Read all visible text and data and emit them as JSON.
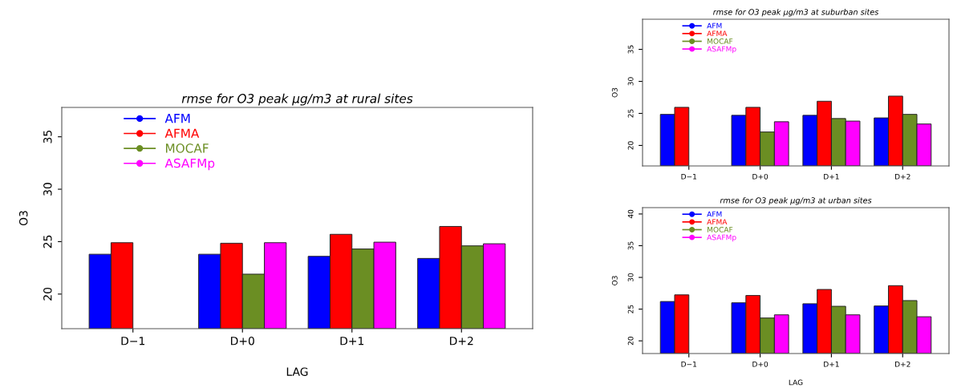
{
  "chart_data": [
    {
      "type": "bar",
      "title": "rmse for O3 peak µg/m3 at rural sites",
      "xlabel": "LAG",
      "ylabel": "O3",
      "categories": [
        "D−1",
        "D+0",
        "D+1",
        "D+2"
      ],
      "ylim": [
        16.7,
        37.8
      ],
      "yticks": [
        20,
        25,
        30,
        35
      ],
      "legend": "top left",
      "grid": false,
      "series": [
        {
          "name": "AFM",
          "color": "#0000ff",
          "values": [
            23.8,
            23.8,
            23.6,
            23.4
          ]
        },
        {
          "name": "AFMA",
          "color": "#ff0000",
          "values": [
            24.9,
            24.85,
            25.7,
            26.45
          ]
        },
        {
          "name": "MOCAF",
          "color": "#6b8e23",
          "values": [
            null,
            21.9,
            24.3,
            24.6
          ]
        },
        {
          "name": "ASAFMp",
          "color": "#ff00ff",
          "values": [
            null,
            24.9,
            24.95,
            24.8
          ]
        }
      ]
    },
    {
      "type": "bar",
      "title": "rmse for O3 peak µg/m3 at suburban sites",
      "ylabel": "O3",
      "categories": [
        "D−1",
        "D+0",
        "D+1",
        "D+2"
      ],
      "ylim": [
        16.8,
        39.7
      ],
      "yticks": [
        20,
        25,
        30,
        35
      ],
      "legend": "top left",
      "grid": false,
      "series": [
        {
          "name": "AFM",
          "color": "#0000ff",
          "values": [
            24.85,
            24.7,
            24.7,
            24.3
          ]
        },
        {
          "name": "AFMA",
          "color": "#ff0000",
          "values": [
            25.95,
            25.95,
            26.9,
            27.7
          ]
        },
        {
          "name": "MOCAF",
          "color": "#6b8e23",
          "values": [
            null,
            22.1,
            24.2,
            24.85
          ]
        },
        {
          "name": "ASAFMp",
          "color": "#ff00ff",
          "values": [
            null,
            23.7,
            23.8,
            23.35
          ]
        }
      ]
    },
    {
      "type": "bar",
      "title": "rmse for O3 peak µg/m3 at urban sites",
      "xlabel": "LAG",
      "ylabel": "O3",
      "categories": [
        "D−1",
        "D+0",
        "D+1",
        "D+2"
      ],
      "ylim": [
        18.0,
        41.0
      ],
      "yticks": [
        20,
        25,
        30,
        35,
        40
      ],
      "legend": "top left",
      "grid": false,
      "series": [
        {
          "name": "AFM",
          "color": "#0000ff",
          "values": [
            26.2,
            26.0,
            25.85,
            25.5
          ]
        },
        {
          "name": "AFMA",
          "color": "#ff0000",
          "values": [
            27.25,
            27.15,
            28.1,
            28.7
          ]
        },
        {
          "name": "MOCAF",
          "color": "#6b8e23",
          "values": [
            null,
            23.6,
            25.45,
            26.35
          ]
        },
        {
          "name": "ASAFMp",
          "color": "#ff00ff",
          "values": [
            null,
            24.1,
            24.1,
            23.8
          ]
        }
      ]
    }
  ]
}
